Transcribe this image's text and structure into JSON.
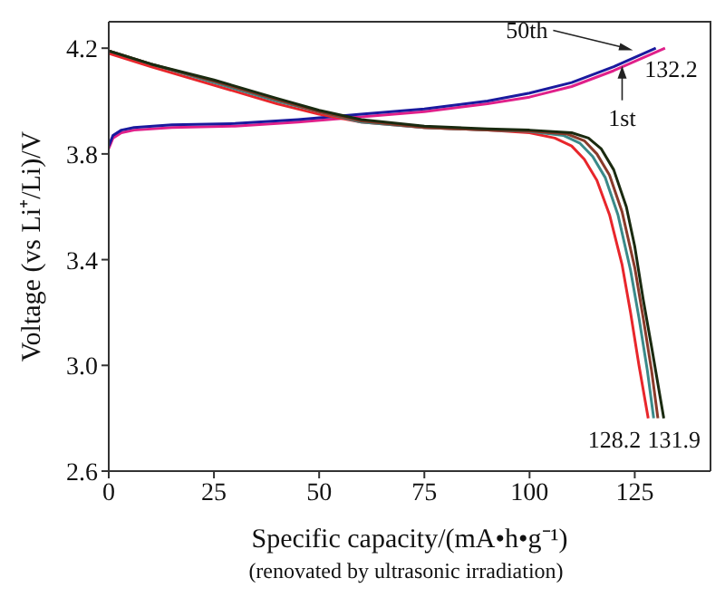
{
  "chart_data": {
    "type": "line",
    "xlabel": "Specific capacity/(mA•h•g⁻¹)",
    "ylabel": "Voltage (vs Li⁺/Li)/V",
    "xlim": [
      0,
      143
    ],
    "xticks": [
      0,
      25,
      50,
      75,
      100,
      125
    ],
    "ylim": [
      2.6,
      4.3
    ],
    "yticks": [
      2.6,
      {
        "value": 3,
        "label": "3.0"
      },
      3.4,
      3.8,
      4.2
    ],
    "series": [
      {
        "color": "#e0208a",
        "x": [
          0,
          1,
          3,
          6,
          15,
          30,
          45,
          60,
          75,
          90,
          100,
          110,
          120,
          132.2
        ],
        "values": [
          3.82,
          3.86,
          3.88,
          3.89,
          3.9,
          3.905,
          3.92,
          3.94,
          3.96,
          3.99,
          4.015,
          4.055,
          4.115,
          4.2
        ]
      },
      {
        "color": "#1a1a9e",
        "x": [
          0,
          1,
          3,
          6,
          15,
          30,
          45,
          60,
          75,
          90,
          100,
          110,
          120,
          130
        ],
        "values": [
          3.83,
          3.87,
          3.89,
          3.9,
          3.91,
          3.915,
          3.93,
          3.95,
          3.97,
          4.0,
          4.03,
          4.07,
          4.13,
          4.2
        ]
      },
      {
        "color": "#e8262b",
        "x": [
          0,
          10,
          25,
          40,
          50,
          60,
          75,
          90,
          100,
          106,
          110,
          113,
          116,
          119,
          122,
          124,
          126,
          128.2
        ],
        "values": [
          4.18,
          4.13,
          4.06,
          3.99,
          3.95,
          3.92,
          3.9,
          3.89,
          3.88,
          3.86,
          3.83,
          3.78,
          3.7,
          3.57,
          3.38,
          3.2,
          3.0,
          2.8
        ]
      },
      {
        "color": "#3a8a8a",
        "x": [
          0,
          10,
          25,
          40,
          50,
          60,
          75,
          90,
          100,
          108,
          112,
          115,
          118,
          121,
          124,
          126,
          128,
          129.5
        ],
        "values": [
          4.19,
          4.14,
          4.07,
          4.0,
          3.96,
          3.92,
          3.9,
          3.89,
          3.885,
          3.87,
          3.84,
          3.79,
          3.71,
          3.57,
          3.36,
          3.18,
          2.98,
          2.8
        ]
      },
      {
        "color": "#8a3a2a",
        "x": [
          0,
          10,
          25,
          40,
          50,
          60,
          75,
          90,
          100,
          109,
          113,
          116,
          119,
          122,
          125,
          127,
          129,
          130.5
        ],
        "values": [
          4.19,
          4.14,
          4.075,
          4.005,
          3.96,
          3.925,
          3.9,
          3.89,
          3.887,
          3.875,
          3.85,
          3.8,
          3.72,
          3.58,
          3.37,
          3.18,
          2.98,
          2.8
        ]
      },
      {
        "color": "#1a2a10",
        "x": [
          0,
          10,
          25,
          40,
          50,
          60,
          75,
          90,
          100,
          110,
          114,
          117,
          120,
          123,
          125,
          127,
          129,
          131.9
        ],
        "values": [
          4.19,
          4.14,
          4.08,
          4.01,
          3.965,
          3.93,
          3.905,
          3.895,
          3.89,
          3.88,
          3.86,
          3.82,
          3.74,
          3.6,
          3.45,
          3.25,
          3.07,
          2.8
        ]
      }
    ],
    "annotations": [
      {
        "text": "50th",
        "x": 125,
        "y": 4.185
      },
      {
        "text": "1st",
        "x": 122,
        "y": 4.14
      },
      {
        "text": "132.2",
        "x": 132.2,
        "y": 4.2
      },
      {
        "text": "128.2",
        "x": 128.2,
        "y": 2.8
      },
      {
        "text": "131.9",
        "x": 131.9,
        "y": 2.8
      },
      "(renovated by ultrasonic irradiation)"
    ]
  }
}
